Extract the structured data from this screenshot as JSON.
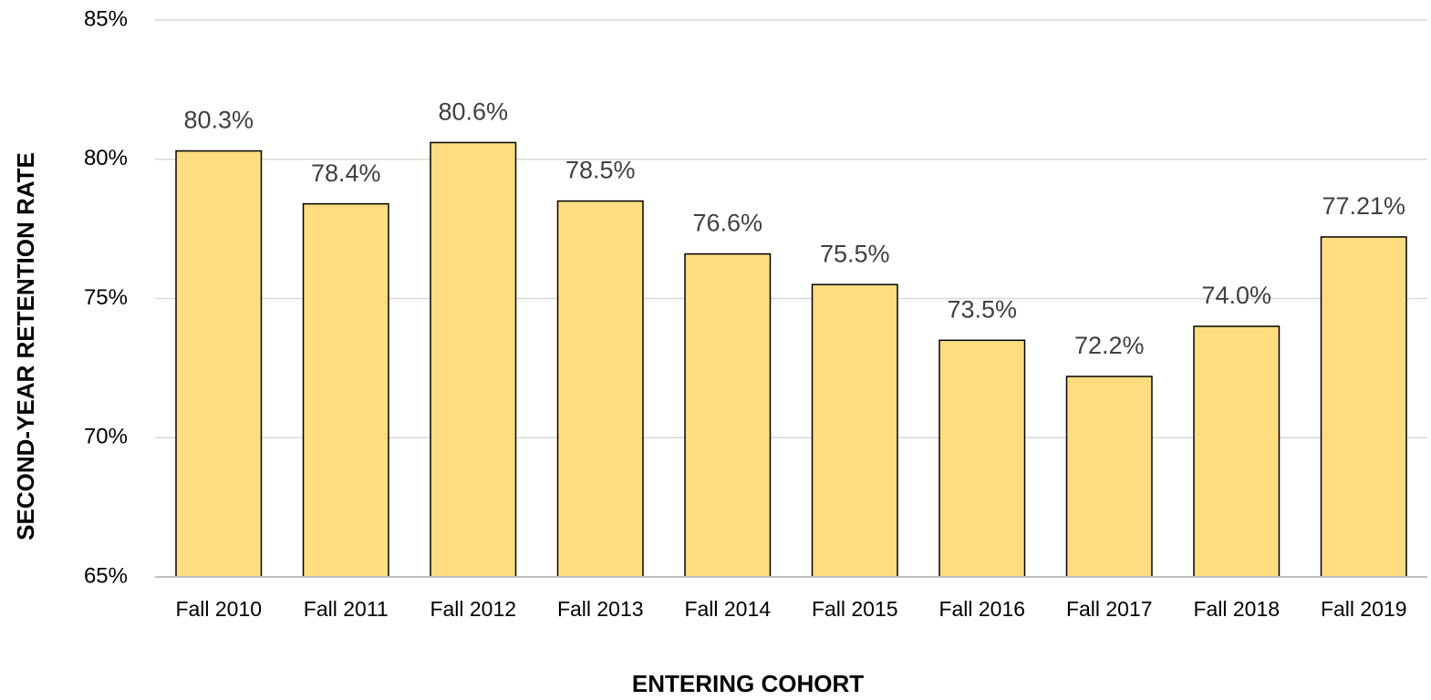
{
  "chart_data": {
    "type": "bar",
    "x_label": "ENTERING COHORT",
    "y_label": "SECOND-YEAR RETENTION RATE",
    "categories": [
      "Fall 2010",
      "Fall 2011",
      "Fall 2012",
      "Fall 2013",
      "Fall 2014",
      "Fall 2015",
      "Fall 2016",
      "Fall 2017",
      "Fall 2018",
      "Fall 2019"
    ],
    "values": [
      80.3,
      78.4,
      80.6,
      78.5,
      76.6,
      75.5,
      73.5,
      72.2,
      74.0,
      77.21
    ],
    "value_labels": [
      "80.3%",
      "78.4%",
      "80.6%",
      "78.5%",
      "76.6%",
      "75.5%",
      "73.5%",
      "72.2%",
      "74.0%",
      "77.21%"
    ],
    "color": "#fedd80",
    "ylim": [
      65,
      85
    ],
    "yticks": [
      {
        "value": 65,
        "label": "65%"
      },
      {
        "value": 70,
        "label": "70%"
      },
      {
        "value": 75,
        "label": "75%"
      },
      {
        "value": 80,
        "label": "80%"
      },
      {
        "value": 85,
        "label": "85%"
      }
    ],
    "grid": true
  }
}
